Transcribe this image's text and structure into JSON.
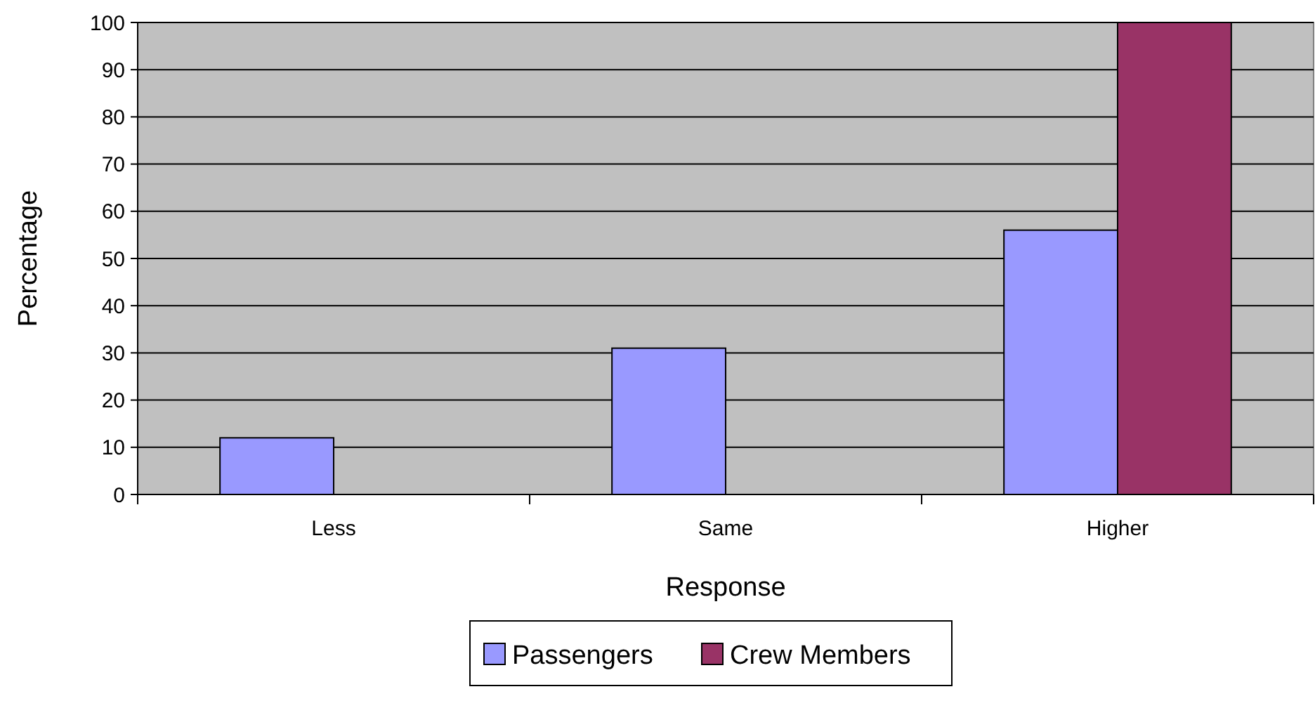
{
  "chart_data": {
    "type": "bar",
    "xlabel": "Response",
    "ylabel": "Percentage",
    "categories": [
      "Less",
      "Same",
      "Higher"
    ],
    "series": [
      {
        "name": "Passengers",
        "color": "#9999ff",
        "values": [
          12,
          31,
          56
        ]
      },
      {
        "name": "Crew Members",
        "color": "#993366",
        "values": [
          0,
          0,
          100
        ]
      }
    ],
    "ylim": [
      0,
      100
    ],
    "yticks": [
      0,
      10,
      20,
      30,
      40,
      50,
      60,
      70,
      80,
      90,
      100
    ],
    "grid": "y",
    "legend": "bottom"
  }
}
